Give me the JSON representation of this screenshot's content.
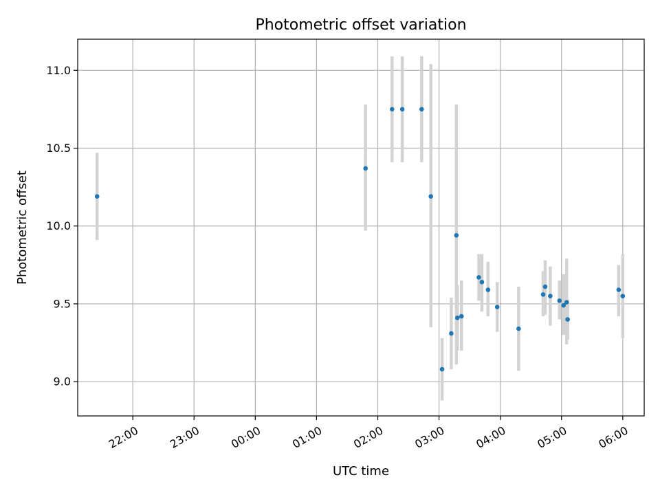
{
  "chart_data": {
    "type": "scatter",
    "title": "Photometric offset variation",
    "xlabel": "UTC time",
    "ylabel": "Photometric offset",
    "x_axis_kind": "time",
    "xlim": [
      "2000-01-01T21:06",
      "2000-01-02T06:21"
    ],
    "ylim": [
      8.78,
      11.2
    ],
    "x_ticks": [
      {
        "t": "2000-01-01T22:00",
        "label": "22:00"
      },
      {
        "t": "2000-01-01T23:00",
        "label": "23:00"
      },
      {
        "t": "2000-01-02T00:00",
        "label": "00:00"
      },
      {
        "t": "2000-01-02T01:00",
        "label": "01:00"
      },
      {
        "t": "2000-01-02T02:00",
        "label": "02:00"
      },
      {
        "t": "2000-01-02T03:00",
        "label": "03:00"
      },
      {
        "t": "2000-01-02T04:00",
        "label": "04:00"
      },
      {
        "t": "2000-01-02T05:00",
        "label": "05:00"
      },
      {
        "t": "2000-01-02T06:00",
        "label": "06:00"
      }
    ],
    "y_ticks": [
      {
        "v": 9.0,
        "label": "9.0"
      },
      {
        "v": 9.5,
        "label": "9.5"
      },
      {
        "v": 10.0,
        "label": "10.0"
      },
      {
        "v": 10.5,
        "label": "10.5"
      },
      {
        "v": 11.0,
        "label": "11.0"
      }
    ],
    "grid": true,
    "colors": {
      "point": "#1f77b4",
      "errorbar": "#d3d3d3",
      "grid": "#b0b0b0"
    },
    "points": [
      {
        "t": "2000-01-01T21:25",
        "y": 10.19,
        "lo": 9.91,
        "hi": 10.47
      },
      {
        "t": "2000-01-02T01:48",
        "y": 10.37,
        "lo": 9.97,
        "hi": 10.78
      },
      {
        "t": "2000-01-02T02:14",
        "y": 10.75,
        "lo": 10.41,
        "hi": 11.09
      },
      {
        "t": "2000-01-02T02:24",
        "y": 10.75,
        "lo": 10.41,
        "hi": 11.09
      },
      {
        "t": "2000-01-02T02:43",
        "y": 10.75,
        "lo": 10.41,
        "hi": 11.09
      },
      {
        "t": "2000-01-02T02:52",
        "y": 10.19,
        "lo": 9.35,
        "hi": 11.04
      },
      {
        "t": "2000-01-02T03:03",
        "y": 9.08,
        "lo": 8.88,
        "hi": 9.28
      },
      {
        "t": "2000-01-02T03:12",
        "y": 9.31,
        "lo": 9.08,
        "hi": 9.54
      },
      {
        "t": "2000-01-02T03:17",
        "y": 9.94,
        "lo": 9.11,
        "hi": 10.78
      },
      {
        "t": "2000-01-02T03:18",
        "y": 9.41,
        "lo": 9.2,
        "hi": 9.62
      },
      {
        "t": "2000-01-02T03:22",
        "y": 9.42,
        "lo": 9.2,
        "hi": 9.65
      },
      {
        "t": "2000-01-02T03:39",
        "y": 9.67,
        "lo": 9.52,
        "hi": 9.82
      },
      {
        "t": "2000-01-02T03:42",
        "y": 9.64,
        "lo": 9.45,
        "hi": 9.82
      },
      {
        "t": "2000-01-02T03:48",
        "y": 9.59,
        "lo": 9.42,
        "hi": 9.77
      },
      {
        "t": "2000-01-02T03:57",
        "y": 9.48,
        "lo": 9.32,
        "hi": 9.64
      },
      {
        "t": "2000-01-02T04:18",
        "y": 9.34,
        "lo": 9.07,
        "hi": 9.61
      },
      {
        "t": "2000-01-02T04:42",
        "y": 9.56,
        "lo": 9.42,
        "hi": 9.71
      },
      {
        "t": "2000-01-02T04:44",
        "y": 9.61,
        "lo": 9.43,
        "hi": 9.78
      },
      {
        "t": "2000-01-02T04:49",
        "y": 9.55,
        "lo": 9.36,
        "hi": 9.74
      },
      {
        "t": "2000-01-02T04:58",
        "y": 9.52,
        "lo": 9.4,
        "hi": 9.65
      },
      {
        "t": "2000-01-02T05:02",
        "y": 9.49,
        "lo": 9.3,
        "hi": 9.69
      },
      {
        "t": "2000-01-02T05:05",
        "y": 9.51,
        "lo": 9.24,
        "hi": 9.79
      },
      {
        "t": "2000-01-02T05:06",
        "y": 9.4,
        "lo": 9.27,
        "hi": 9.53
      },
      {
        "t": "2000-01-02T05:56",
        "y": 9.59,
        "lo": 9.42,
        "hi": 9.75
      },
      {
        "t": "2000-01-02T06:00",
        "y": 9.55,
        "lo": 9.28,
        "hi": 9.82
      }
    ]
  }
}
